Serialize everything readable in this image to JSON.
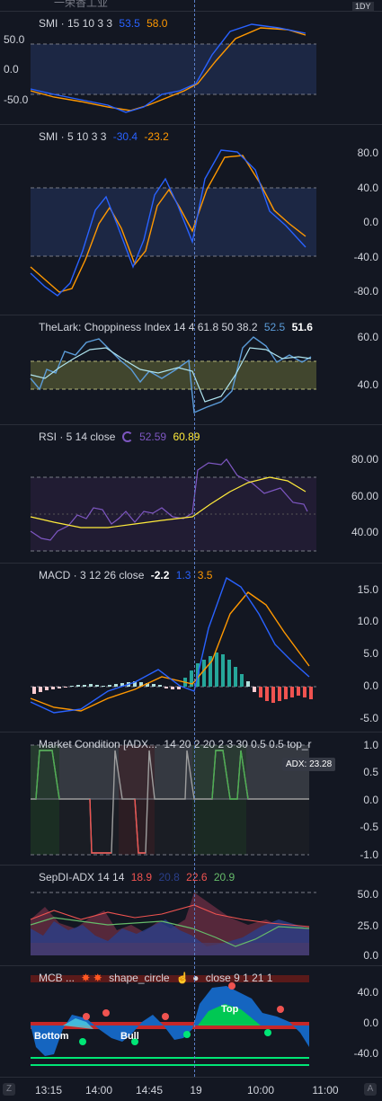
{
  "top_strip": {
    "title": "一荣香工业",
    "badge": "1DY"
  },
  "colors": {
    "blue": "#2962ff",
    "orange": "#ff9800",
    "purple": "#7e57c2",
    "yellow": "#ffeb3b",
    "teal": "#26a69a",
    "red": "#ef5350",
    "green": "#4caf50",
    "white": "#ffffff"
  },
  "panes": {
    "smi1": {
      "title": "SMI · 15 10 3 3",
      "v1": "53.5",
      "v2": "58.0",
      "axis": [
        "50.0",
        "0.0",
        "-50.0"
      ]
    },
    "smi2": {
      "title": "SMI · 5 10 3 3",
      "v1": "-30.4",
      "v2": "-23.2",
      "axis": [
        "80.0",
        "40.0",
        "0.0",
        "-40.0",
        "-80.0"
      ]
    },
    "chop": {
      "title": "TheLark: Choppiness Index 14 4 61.8 50 38.2",
      "v1": "52.5",
      "v2": "51.6",
      "axis": [
        "60.0",
        "40.0"
      ]
    },
    "rsi": {
      "title": "RSI · 5 14 close",
      "v1": "52.59",
      "v2": "60.89",
      "axis": [
        "80.00",
        "60.00",
        "40.00"
      ]
    },
    "macd": {
      "title": "MACD · 3 12 26 close",
      "v1": "-2.2",
      "v2": "1.3",
      "v3": "3.5",
      "axis": [
        "15.0",
        "10.0",
        "5.0",
        "0.0",
        "-5.0"
      ]
    },
    "mc": {
      "title": "Market Condition [ADX...",
      "params": "14 20 2 20 2 3 30 0.5 0.5 top_r",
      "badge": "ADX: 23.28",
      "axis": [
        "1.0",
        "0.5",
        "0.0",
        "-0.5",
        "-1.0"
      ]
    },
    "sepdi": {
      "title": "SepDI-ADX 14 14",
      "v1": "18.9",
      "v2": "20.8",
      "v3": "22.6",
      "v4": "20.9",
      "axis": [
        "50.0",
        "25.0",
        "0.0"
      ]
    },
    "mcb": {
      "title": "MCB ...",
      "shape": "shape_circle",
      "params": "close 9 1 21 1",
      "axis": [
        "40.0",
        "0.0",
        "-40.0"
      ],
      "labels": {
        "top": "Top",
        "bottom": "Bottom",
        "bull": "Bull"
      }
    }
  },
  "timeaxis": {
    "ticks": [
      "13:15",
      "14:00",
      "14:45",
      "19",
      "10:00",
      "11:00"
    ],
    "left_btn": "Z",
    "right_btn": "A"
  }
}
